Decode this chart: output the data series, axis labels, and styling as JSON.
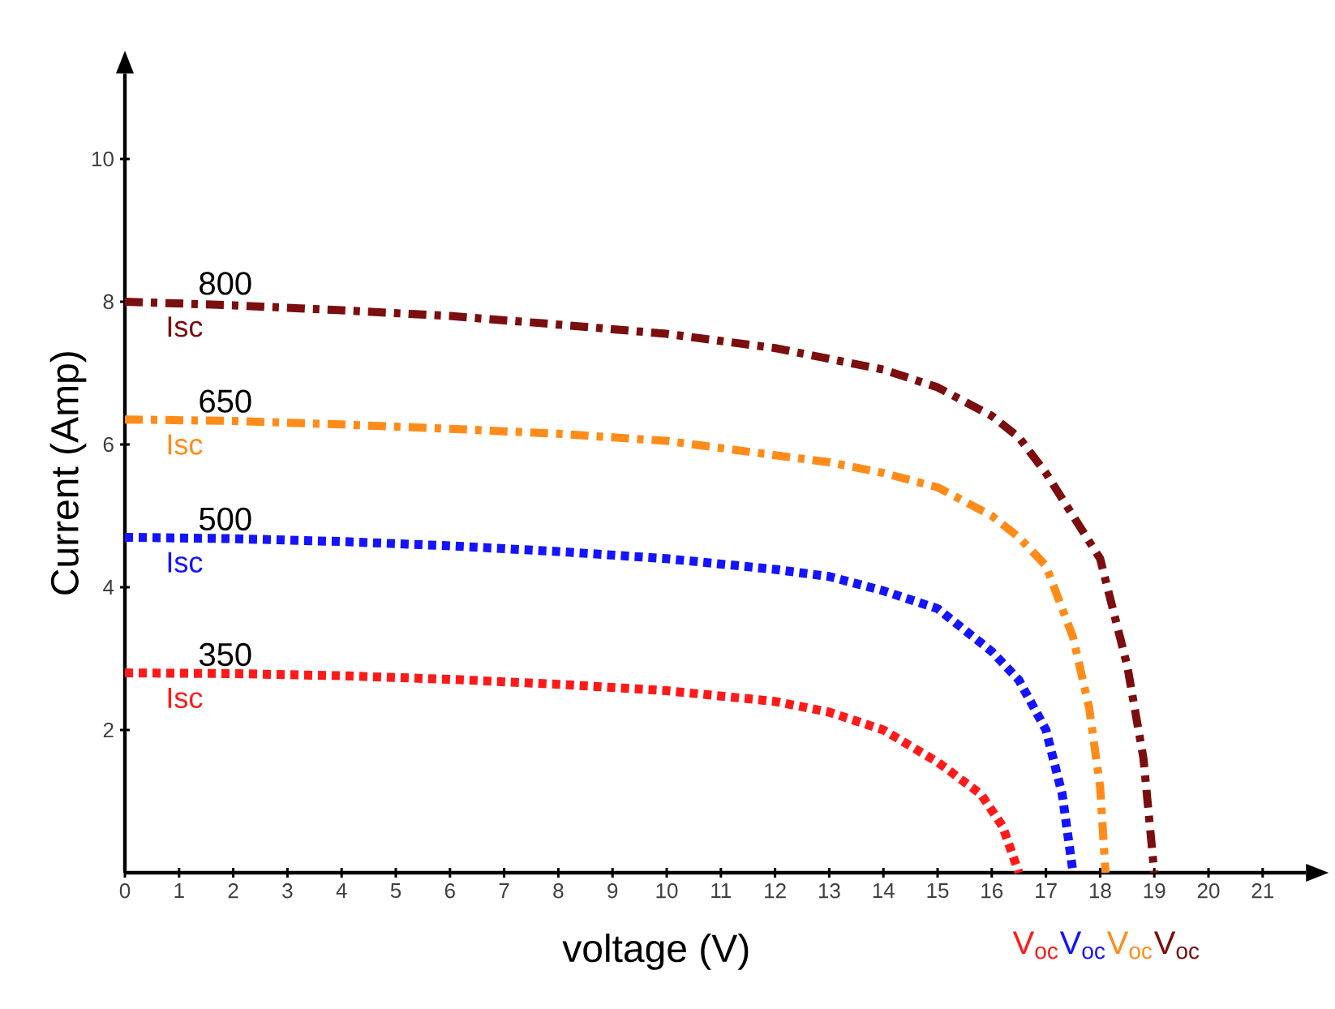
{
  "chart_data": {
    "type": "line",
    "xlabel": "voltage (V)",
    "ylabel": "Current (Amp)",
    "xlim": [
      0,
      21.8
    ],
    "ylim": [
      0,
      11.2
    ],
    "xticks": [
      0,
      1,
      2,
      3,
      4,
      5,
      6,
      7,
      8,
      9,
      10,
      11,
      12,
      13,
      14,
      15,
      16,
      17,
      18,
      19,
      20,
      21
    ],
    "yticks": [
      2,
      4,
      6,
      8,
      10
    ],
    "series": [
      {
        "name": "800",
        "color": "#7b0e0e",
        "line_style": "dashdot",
        "x": [
          0,
          2,
          4,
          6,
          8,
          10,
          12,
          13,
          14,
          15,
          16,
          16.5,
          17,
          17.5,
          18,
          18.5,
          18.8,
          19
        ],
        "values": [
          8.0,
          7.95,
          7.88,
          7.8,
          7.68,
          7.55,
          7.35,
          7.2,
          7.05,
          6.8,
          6.4,
          6.1,
          5.6,
          5.0,
          4.4,
          2.9,
          1.6,
          0
        ]
      },
      {
        "name": "650",
        "color": "#ff8c1a",
        "line_style": "dashdot",
        "x": [
          0,
          2,
          4,
          6,
          8,
          10,
          12,
          13,
          14,
          15,
          16,
          16.5,
          17,
          17.5,
          17.8,
          18,
          18.1
        ],
        "values": [
          6.35,
          6.33,
          6.28,
          6.22,
          6.15,
          6.05,
          5.85,
          5.75,
          5.6,
          5.4,
          5.0,
          4.7,
          4.3,
          3.3,
          2.3,
          1.2,
          0
        ]
      },
      {
        "name": "500",
        "color": "#1414ff",
        "line_style": "dotted",
        "x": [
          0,
          2,
          4,
          6,
          8,
          10,
          12,
          13,
          14,
          15,
          16,
          16.5,
          17,
          17.3,
          17.5
        ],
        "values": [
          4.7,
          4.68,
          4.64,
          4.58,
          4.5,
          4.4,
          4.25,
          4.15,
          3.95,
          3.7,
          3.1,
          2.7,
          2.0,
          1.1,
          0
        ]
      },
      {
        "name": "350",
        "color": "#ff1a1a",
        "line_style": "dotted",
        "x": [
          0,
          2,
          4,
          6,
          8,
          10,
          12,
          13,
          14,
          15,
          15.8,
          16.2,
          16.5
        ],
        "values": [
          2.8,
          2.79,
          2.76,
          2.71,
          2.64,
          2.55,
          2.4,
          2.25,
          2.0,
          1.55,
          1.1,
          0.65,
          0
        ]
      }
    ],
    "annotations": [
      {
        "text": "Isc",
        "x": 0,
        "y": 8.0
      },
      {
        "text": "Isc",
        "x": 0,
        "y": 6.35
      },
      {
        "text": "Isc",
        "x": 0,
        "y": 4.7
      },
      {
        "text": "Isc",
        "x": 0,
        "y": 2.8
      },
      {
        "text": "V$_{oc}$",
        "x": 16.5,
        "y": 0
      },
      {
        "text": "V$_{oc}$",
        "x": 17.5,
        "y": 0
      },
      {
        "text": "V$_{oc}$",
        "x": 18.1,
        "y": 0
      },
      {
        "text": "V$_{oc}$",
        "x": 19,
        "y": 0
      }
    ]
  }
}
